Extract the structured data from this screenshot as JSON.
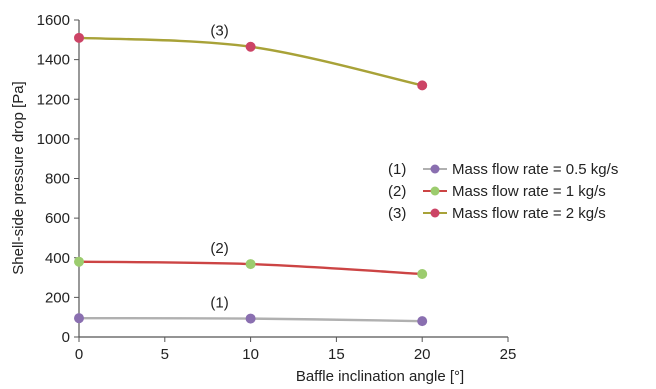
{
  "chart_data": {
    "type": "line",
    "xlabel": "Baffle inclination angle [°]",
    "ylabel": "Shell-side pressure drop [Pa]",
    "xlim": [
      0,
      25
    ],
    "ylim": [
      0,
      1600
    ],
    "x_ticks": [
      "0",
      "5",
      "10",
      "15",
      "20",
      "25"
    ],
    "y_ticks": [
      "0",
      "200",
      "400",
      "600",
      "800",
      "1000",
      "1200",
      "1400",
      "1600"
    ],
    "grid": false,
    "legend_position": "right",
    "x": [
      0,
      10,
      20
    ],
    "series": [
      {
        "tag": "(1)",
        "name": "Mass flow rate = 0.5 kg/s",
        "values": [
          95,
          93,
          80
        ],
        "line_color": "#b0b0b0",
        "marker_color": "#8a6fb0"
      },
      {
        "tag": "(2)",
        "name": "Mass flow rate = 1 kg/s",
        "values": [
          380,
          368,
          318
        ],
        "line_color": "#cc4444",
        "marker_color": "#9ccc6e"
      },
      {
        "tag": "(3)",
        "name": "Mass flow rate = 2 kg/s",
        "values": [
          1510,
          1465,
          1270
        ],
        "line_color": "#a8a238",
        "marker_color": "#cc4466"
      }
    ]
  }
}
